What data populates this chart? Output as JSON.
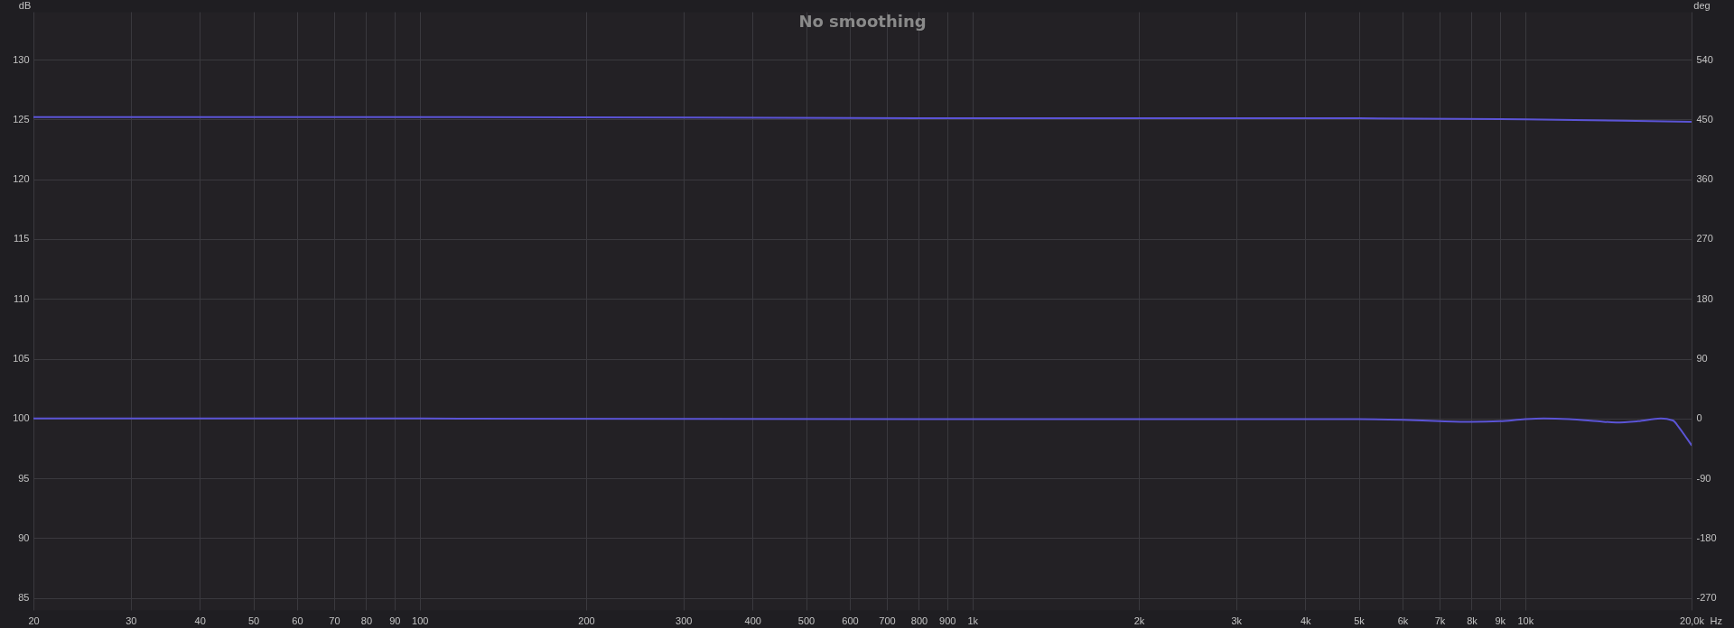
{
  "chart_data": {
    "type": "line",
    "title": "No smoothing",
    "xlabel": "Hz",
    "ylabel": "dB",
    "y2label": "deg",
    "log": "x",
    "grid": true,
    "xlim": [
      20,
      20000
    ],
    "xticks": [
      20,
      30,
      40,
      50,
      60,
      70,
      80,
      90,
      100,
      200,
      300,
      400,
      500,
      600,
      700,
      800,
      900,
      {
        "value": 1000,
        "label": "1k"
      },
      {
        "value": 2000,
        "label": "2k"
      },
      {
        "value": 3000,
        "label": "3k"
      },
      {
        "value": 4000,
        "label": "4k"
      },
      {
        "value": 5000,
        "label": "5k"
      },
      {
        "value": 6000,
        "label": "6k"
      },
      {
        "value": 7000,
        "label": "7k"
      },
      {
        "value": 8000,
        "label": "8k"
      },
      {
        "value": 9000,
        "label": "9k"
      },
      {
        "value": 10000,
        "label": "10k"
      },
      {
        "value": 20000,
        "label": "20,0k"
      }
    ],
    "ylim": [
      84,
      134
    ],
    "yticks": [
      85,
      90,
      95,
      100,
      105,
      110,
      115,
      120,
      125,
      130
    ],
    "y2lim": [
      -288,
      612
    ],
    "y2ticks": [
      -270,
      -180,
      -90,
      0,
      90,
      180,
      270,
      360,
      450,
      540
    ],
    "series": [
      {
        "color": "#5b54d6",
        "x": [
          20,
          100,
          1000,
          5000,
          10000,
          15000,
          20000
        ],
        "values": [
          125.2,
          125.2,
          125.1,
          125.1,
          125.0,
          124.9,
          124.8
        ]
      },
      {
        "color": "#5b54d6",
        "axis": "y2",
        "x": [
          20,
          100,
          1000,
          3000,
          5000,
          6000,
          7000,
          8000,
          9000,
          10000,
          10800,
          12000,
          13500,
          14600,
          16000,
          17600,
          18500,
          19000,
          19500,
          20000
        ],
        "values": [
          0,
          0,
          -1,
          -1,
          -1,
          -2,
          -4,
          -5,
          -4,
          -1,
          0,
          -1,
          -4,
          -6,
          -4,
          0,
          -3,
          -14,
          -27,
          -40
        ]
      }
    ]
  }
}
